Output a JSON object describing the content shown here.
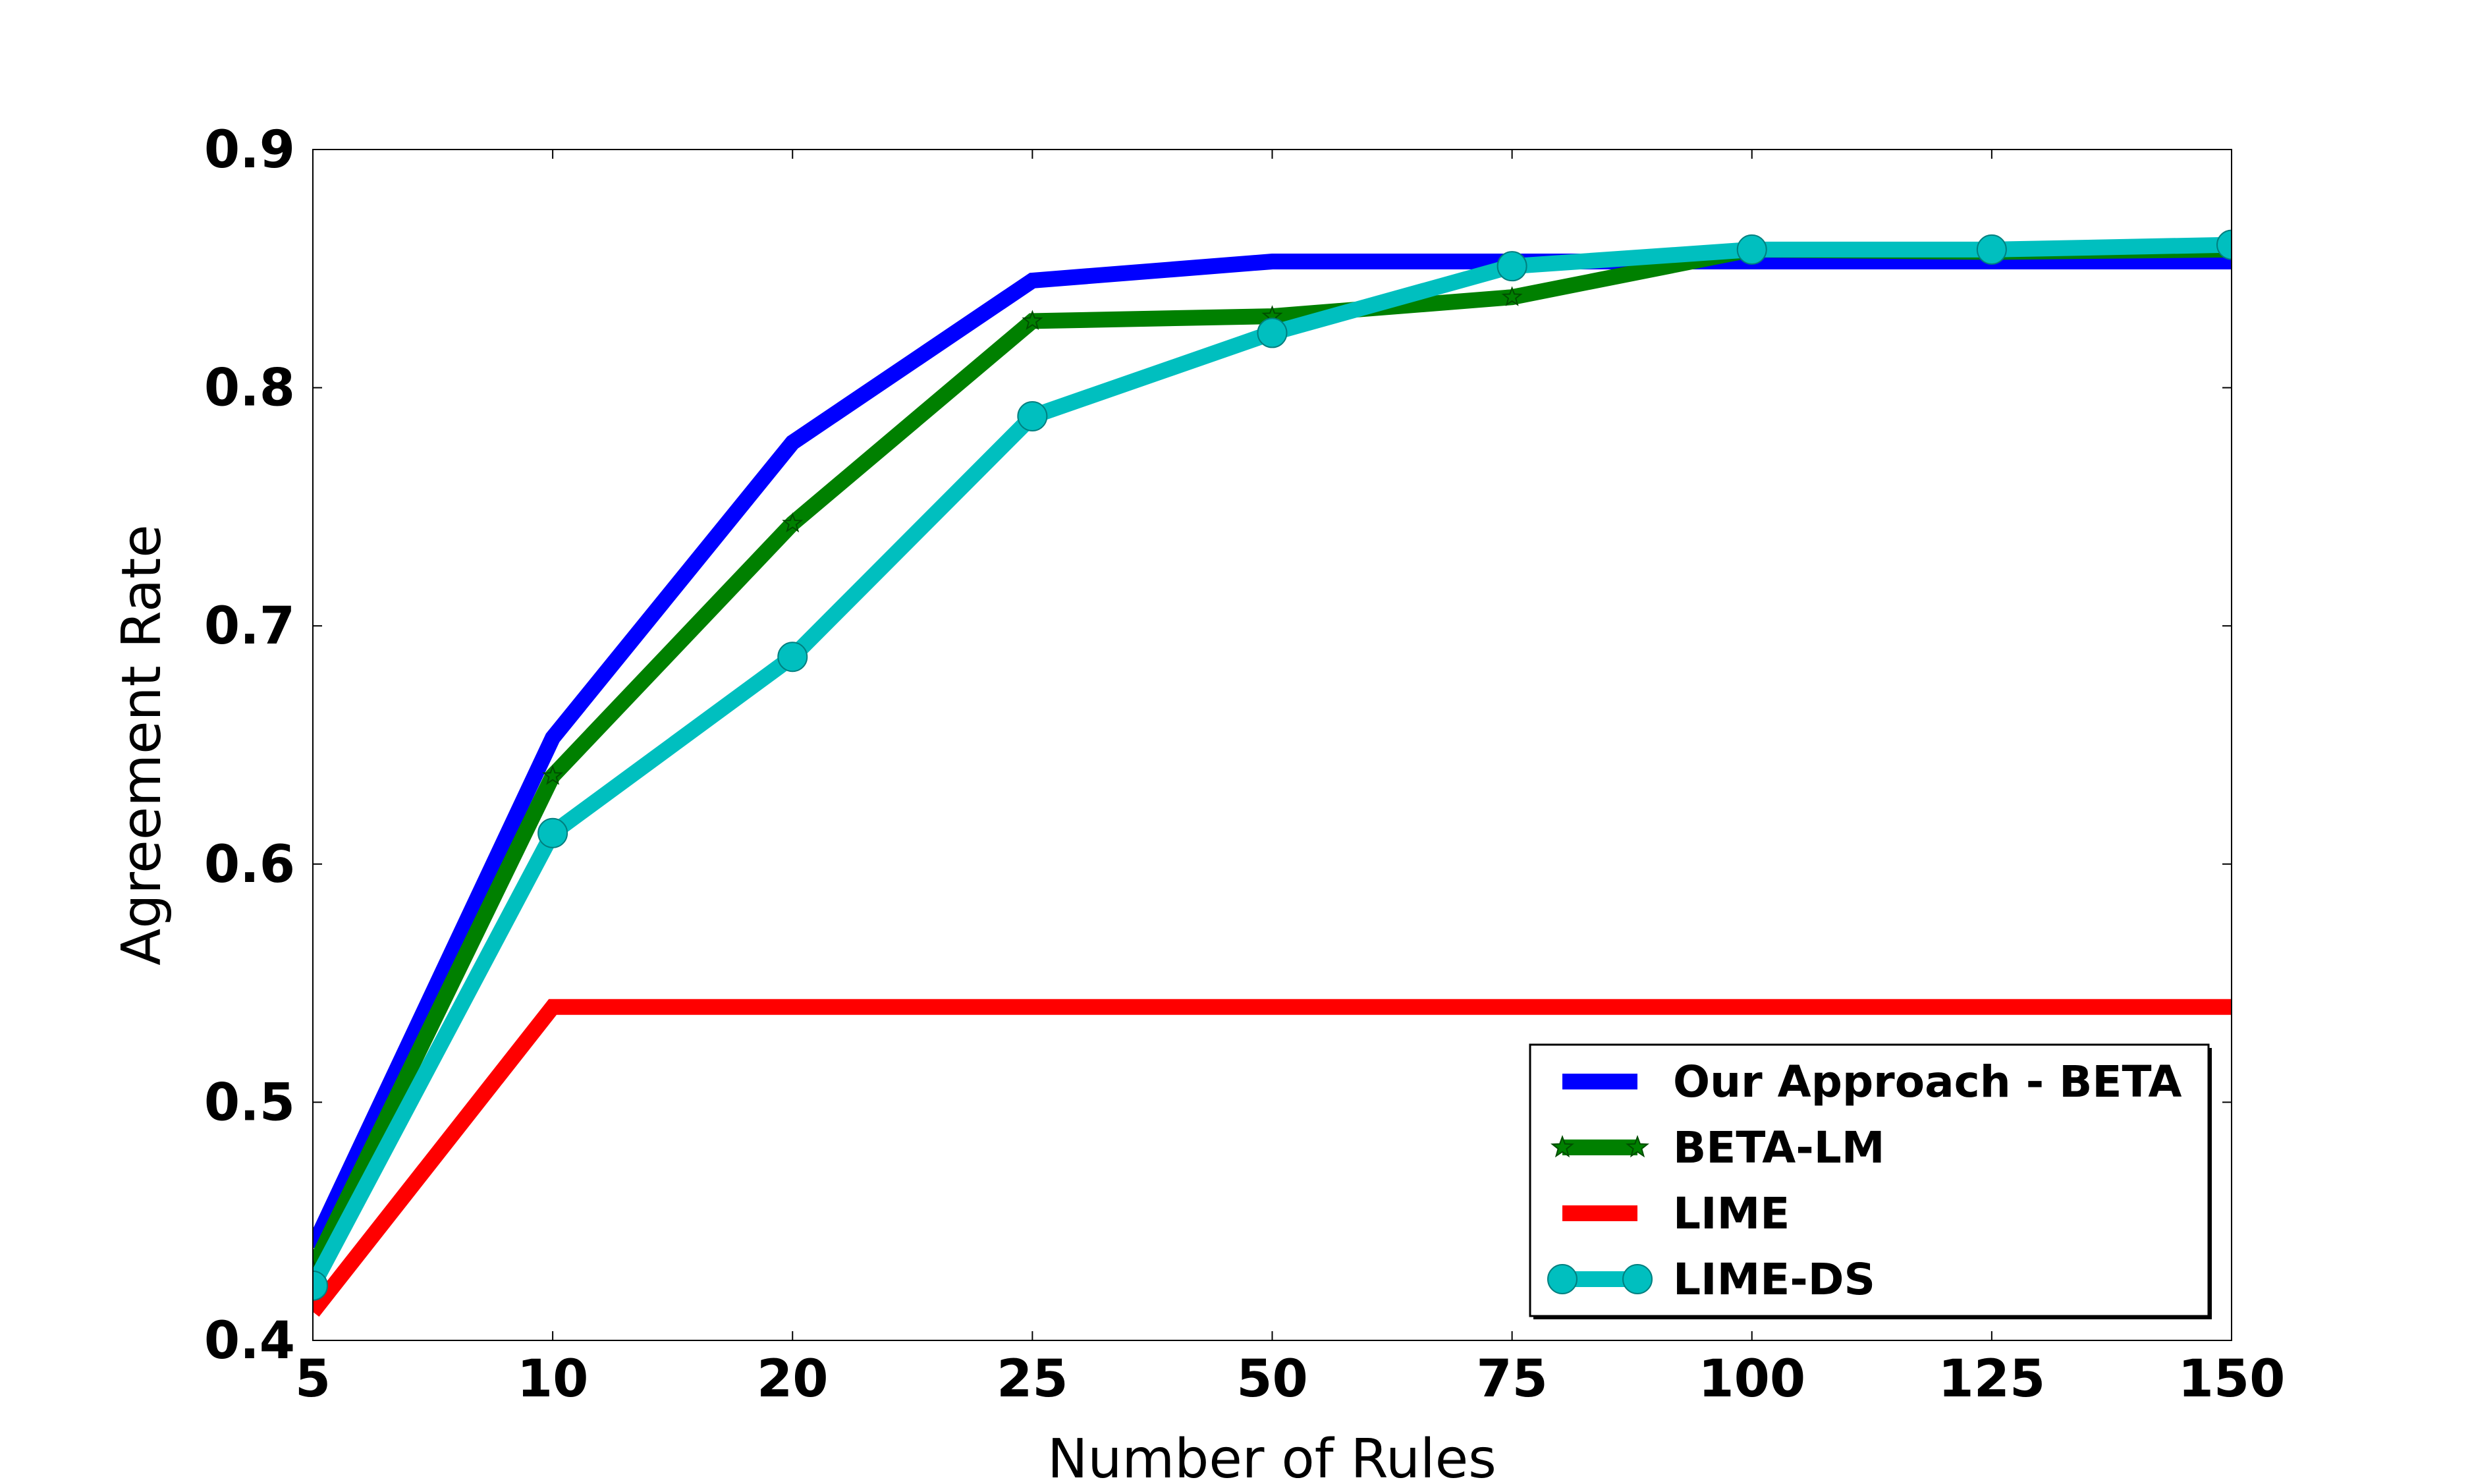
{
  "chart_data": {
    "type": "line",
    "title": "",
    "xlabel": "Number of Rules",
    "ylabel": "Agreement Rate",
    "categories": [
      "5",
      "10",
      "20",
      "25",
      "50",
      "75",
      "100",
      "125",
      "150"
    ],
    "ylim": [
      0.4,
      0.9
    ],
    "yticks": [
      0.4,
      0.5,
      0.6,
      0.7,
      0.8,
      0.9
    ],
    "ytick_labels": [
      "0.4",
      "0.5",
      "0.6",
      "0.7",
      "0.8",
      "0.9"
    ],
    "grid": false,
    "legend_position": "lower-right",
    "series": [
      {
        "name": "Our Approach - BETA",
        "color": "#0000ff",
        "marker": "none",
        "values": [
          0.439,
          0.653,
          0.777,
          0.845,
          0.853,
          0.853,
          0.853,
          0.853,
          0.853
        ]
      },
      {
        "name": "BETA-LM",
        "color": "#008000",
        "marker": "star",
        "values": [
          0.43,
          0.637,
          0.743,
          0.828,
          0.83,
          0.838,
          0.858,
          0.857,
          0.858
        ]
      },
      {
        "name": "LIME",
        "color": "#ff0000",
        "marker": "none",
        "values": [
          0.412,
          0.54,
          0.54,
          0.54,
          0.54,
          0.54,
          0.54,
          0.54,
          0.54
        ]
      },
      {
        "name": "LIME-DS",
        "color": "#00bfbf",
        "marker": "circle",
        "values": [
          0.423,
          0.613,
          0.687,
          0.788,
          0.823,
          0.851,
          0.858,
          0.858,
          0.86
        ]
      }
    ]
  }
}
